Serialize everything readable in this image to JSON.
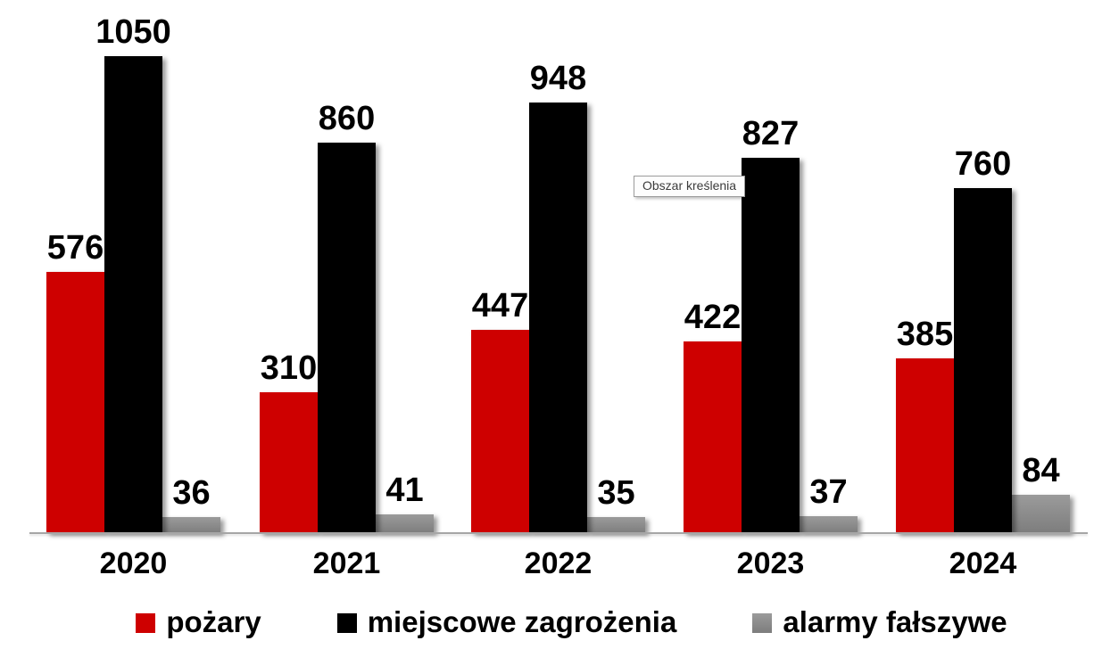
{
  "chart_data": {
    "type": "bar",
    "title": "",
    "categories": [
      "2020",
      "2021",
      "2022",
      "2023",
      "2024"
    ],
    "series": [
      {
        "id": "pozary",
        "name": "pożary",
        "color": "#CE0000",
        "values": [
          576,
          310,
          447,
          422,
          385
        ]
      },
      {
        "id": "miejscowe-zagrozenia",
        "name": "miejscowe zagrożenia",
        "color": "#000000",
        "values": [
          1050,
          860,
          948,
          827,
          760
        ]
      },
      {
        "id": "alarmy-falszywe",
        "name": "alarmy fałszywe",
        "color": "#9B9B9B",
        "color2": "#7D7D7D",
        "values": [
          36,
          41,
          35,
          37,
          84
        ]
      }
    ],
    "xlabel": "",
    "ylabel": "",
    "ylim": [
      0,
      1050
    ],
    "grid": false,
    "y_axis_visible": false,
    "legend_position": "bottom",
    "data_labels": true,
    "axis_line_color": "#A6A6A6",
    "label_color": "#000000",
    "background_color": "#FFFFFF"
  },
  "tooltip": {
    "text": "Obszar kreślenia"
  }
}
